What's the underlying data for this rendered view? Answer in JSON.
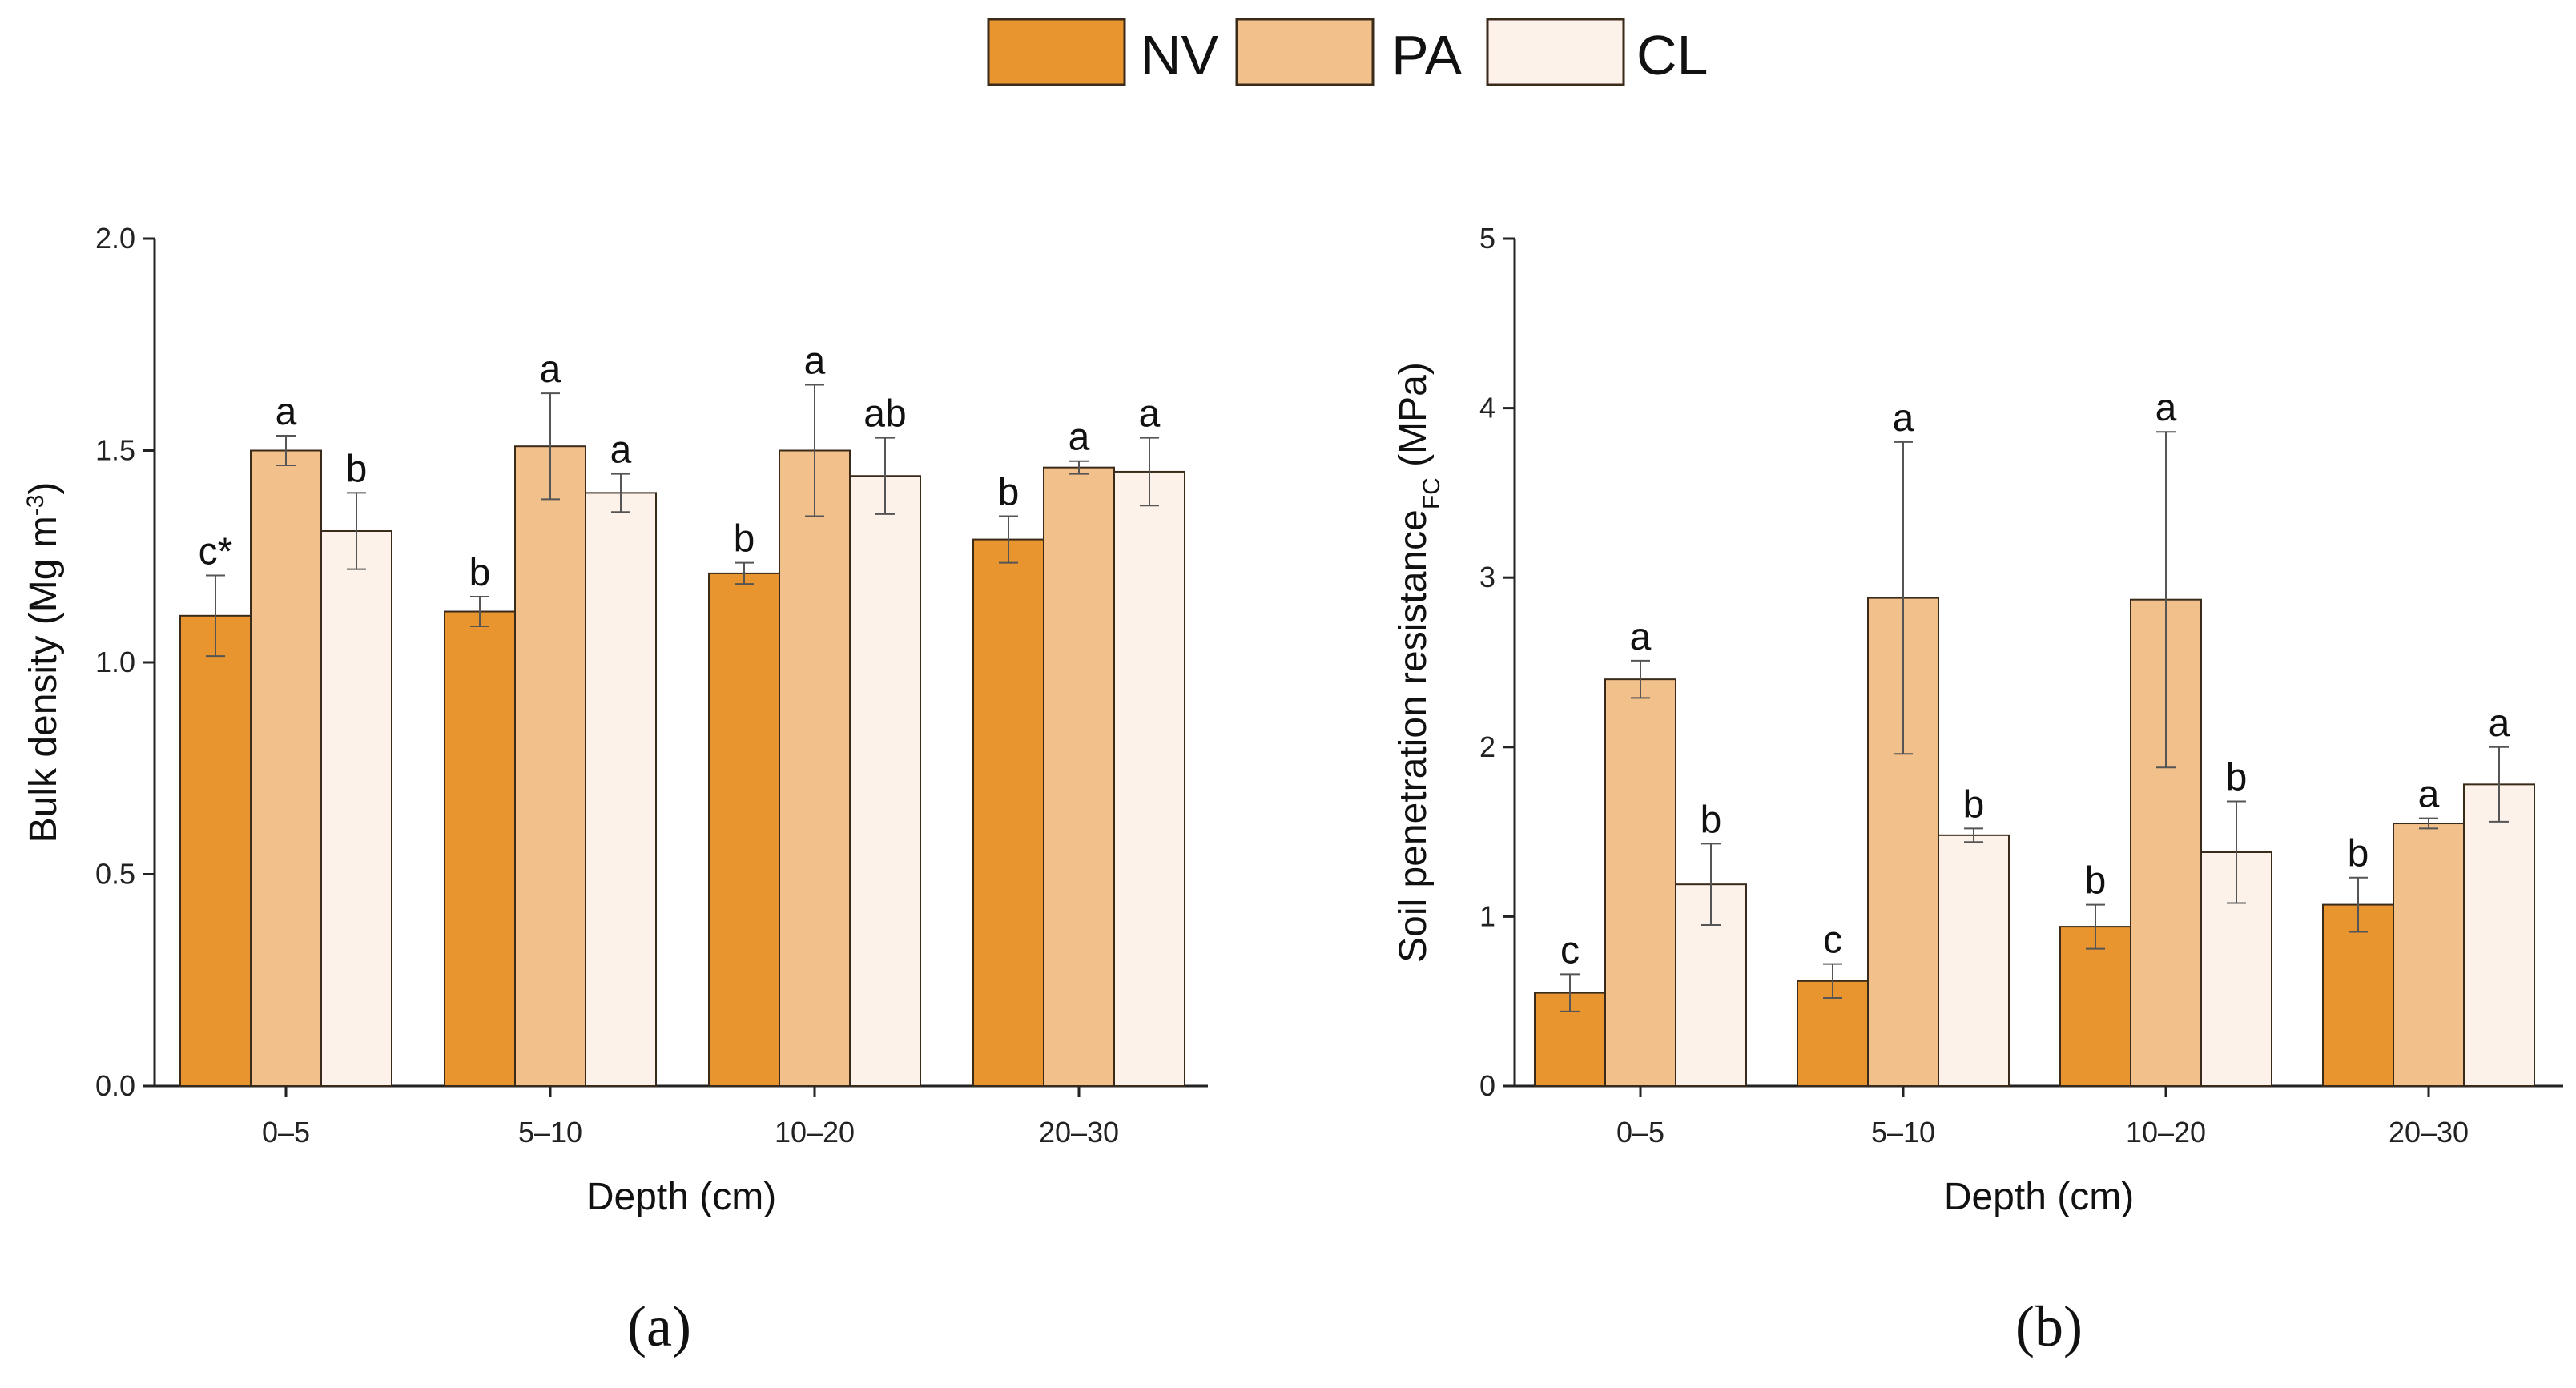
{
  "legend": [
    {
      "name": "NV",
      "color": "#E8942F"
    },
    {
      "name": "PA",
      "color": "#F1C08B"
    },
    {
      "name": "CL",
      "color": "#FDF2EA"
    }
  ],
  "chart_data": [
    {
      "type": "bar",
      "panel_label": "(a)",
      "ylabel_main": "Bulk density (Mg m",
      "ylabel_sup": "-3",
      "ylabel_end": ")",
      "xlabel": "Depth (cm)",
      "ylim": [
        0,
        2.0
      ],
      "yticks": [
        0.0,
        0.5,
        1.0,
        1.5,
        2.0
      ],
      "ytick_labels": [
        "0.0",
        "0.5",
        "1.0",
        "1.5",
        "2.0"
      ],
      "categories": [
        "0–5",
        "5–10",
        "10–20",
        "20–30"
      ],
      "series": [
        {
          "name": "NV",
          "values": [
            1.11,
            1.12,
            1.21,
            1.29
          ],
          "errors": [
            0.095,
            0.035,
            0.025,
            0.055
          ],
          "letters": [
            "c*",
            "b",
            "b",
            "b"
          ]
        },
        {
          "name": "PA",
          "values": [
            1.5,
            1.51,
            1.5,
            1.46
          ],
          "errors": [
            0.035,
            0.125,
            0.155,
            0.015
          ],
          "letters": [
            "a",
            "a",
            "a",
            "a"
          ]
        },
        {
          "name": "CL",
          "values": [
            1.31,
            1.4,
            1.44,
            1.45
          ],
          "errors": [
            0.09,
            0.045,
            0.09,
            0.08
          ],
          "letters": [
            "b",
            "a",
            "ab",
            "a"
          ]
        }
      ]
    },
    {
      "type": "bar",
      "panel_label": "(b)",
      "ylabel_main": "Soil penetration resistance",
      "ylabel_sub": "FC",
      "ylabel_end": " (MPa)",
      "xlabel": "Depth (cm)",
      "ylim": [
        0,
        5
      ],
      "yticks": [
        0,
        1,
        2,
        3,
        4,
        5
      ],
      "ytick_labels": [
        "0",
        "1",
        "2",
        "3",
        "4",
        "5"
      ],
      "categories": [
        "0–5",
        "5–10",
        "10–20",
        "20–30"
      ],
      "series": [
        {
          "name": "NV",
          "values": [
            0.55,
            0.62,
            0.94,
            1.07
          ],
          "errors": [
            0.11,
            0.1,
            0.13,
            0.16
          ],
          "letters": [
            "c",
            "c",
            "b",
            "b"
          ]
        },
        {
          "name": "PA",
          "values": [
            2.4,
            2.88,
            2.87,
            1.55
          ],
          "errors": [
            0.11,
            0.92,
            0.99,
            0.03
          ],
          "letters": [
            "a",
            "a",
            "a",
            "a"
          ]
        },
        {
          "name": "CL",
          "values": [
            1.19,
            1.48,
            1.38,
            1.78
          ],
          "errors": [
            0.24,
            0.04,
            0.3,
            0.22
          ],
          "letters": [
            "b",
            "b",
            "b",
            "a"
          ]
        }
      ]
    }
  ]
}
